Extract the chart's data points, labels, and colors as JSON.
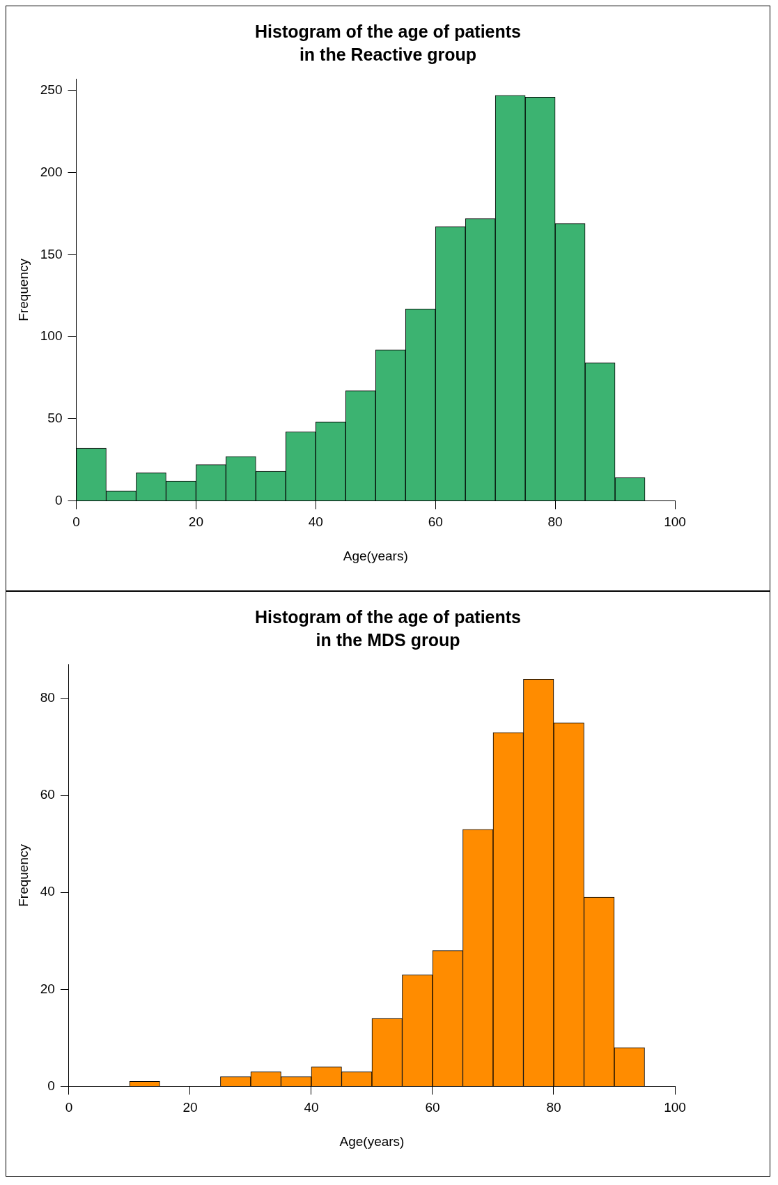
{
  "chart_data": [
    {
      "type": "histogram",
      "title": "Histogram of the age of patients\nin the Reactive group",
      "xlabel": "Age(years)",
      "ylabel": "Frequency",
      "bins": [
        0,
        5,
        10,
        15,
        20,
        25,
        30,
        35,
        40,
        45,
        50,
        55,
        60,
        65,
        70,
        75,
        80,
        85,
        90,
        95
      ],
      "values": [
        32,
        6,
        17,
        12,
        22,
        27,
        18,
        42,
        48,
        67,
        92,
        117,
        167,
        172,
        247,
        246,
        169,
        84,
        14
      ],
      "color": "#3cb371",
      "xlim": [
        0,
        100
      ],
      "xticks": [
        0,
        20,
        40,
        60,
        80,
        100
      ],
      "ylim": [
        0,
        257
      ],
      "yticks": [
        0,
        50,
        100,
        150,
        200,
        250
      ],
      "grid": false
    },
    {
      "type": "histogram",
      "title": "Histogram of the age of patients\nin the MDS group",
      "xlabel": "Age(years)",
      "ylabel": "Frequency",
      "bins": [
        10,
        15,
        20,
        25,
        30,
        35,
        40,
        45,
        50,
        55,
        60,
        65,
        70,
        75,
        80,
        85,
        90,
        95
      ],
      "values": [
        1,
        0,
        0,
        2,
        3,
        2,
        4,
        3,
        14,
        23,
        28,
        53,
        73,
        84,
        75,
        39,
        8
      ],
      "color": "#ff8c00",
      "xlim": [
        0,
        100
      ],
      "xticks": [
        0,
        20,
        40,
        60,
        80,
        100
      ],
      "ylim": [
        0,
        87
      ],
      "yticks": [
        0,
        20,
        40,
        60,
        80
      ],
      "grid": false
    }
  ]
}
